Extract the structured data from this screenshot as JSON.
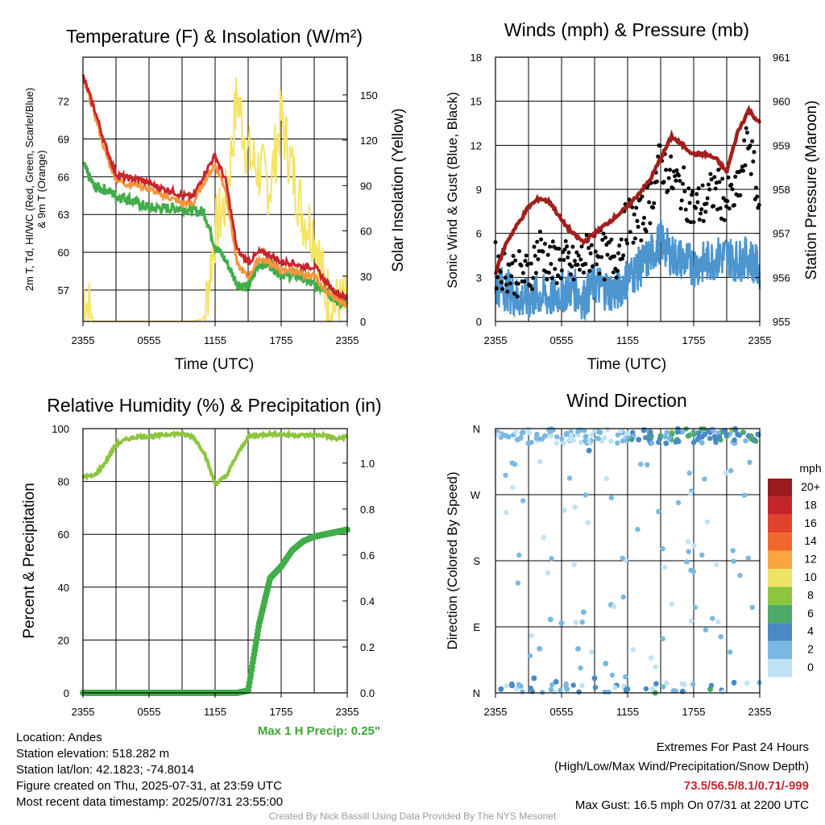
{
  "colors": {
    "temp": "#c8252c",
    "dew_green": "#41ad49",
    "orange": "#f7953b",
    "insolation": "#f6e363",
    "wind": "#4d95cf",
    "gust": "#000000",
    "pressure": "#a21f1c",
    "rh": "#8cc63f",
    "precip": "#41ad49",
    "max_precip_text": "#3aa632",
    "extremes_text": "#c0272d"
  },
  "x_ticks": [
    "2355",
    "0555",
    "1155",
    "1755",
    "2355"
  ],
  "panels": {
    "temp": {
      "title": "Temperature (F) & Insolation (W/m²)",
      "ylabel_left_1": "2m T, Td, HI/WC (Red, Green, Scarlet/Blue)",
      "ylabel_left_2": "& 9m T (Orange)",
      "ylabel_right": "Solar Insolation (Yellow)",
      "xlabel": "Time (UTC)",
      "y_ticks": [
        "57",
        "60",
        "63",
        "66",
        "69",
        "72"
      ],
      "y2_ticks": [
        "0",
        "30",
        "60",
        "90",
        "120",
        "150"
      ]
    },
    "wind": {
      "title": "Winds (mph) & Pressure (mb)",
      "ylabel_left": "Sonic Wind & Gust (Blue, Black)",
      "ylabel_right": "Station Pressure (Maroon)",
      "xlabel": "Time (UTC)",
      "y_ticks": [
        "0",
        "3",
        "6",
        "9",
        "12",
        "15",
        "18"
      ],
      "y2_ticks": [
        "955",
        "956",
        "957",
        "958",
        "959",
        "960",
        "961"
      ]
    },
    "rh": {
      "title": "Relative Humidity (%) & Precipitation (in)",
      "ylabel_left": "Percent & Precipitation",
      "y_ticks": [
        "0",
        "20",
        "40",
        "60",
        "80",
        "100"
      ],
      "y2_ticks": [
        "0.0",
        "0.2",
        "0.4",
        "0.6",
        "0.8",
        "1.0"
      ],
      "max_precip": "Max 1 H Precip: 0.25\""
    },
    "dir": {
      "title": "Wind Direction",
      "ylabel_left": "Direction (Colored By Speed)",
      "y_ticks": [
        "N",
        "E",
        "S",
        "W",
        "N"
      ],
      "legend_title": "mph",
      "legend_labels": [
        "20+",
        "18",
        "16",
        "14",
        "12",
        "10",
        "8",
        "6",
        "4",
        "2",
        "0"
      ],
      "legend_colors": [
        "#9b1c1f",
        "#c4252b",
        "#e0432b",
        "#f0682e",
        "#f9a540",
        "#ede465",
        "#8cc63f",
        "#4daa6a",
        "#4889c6",
        "#7ab8e2",
        "#bfe2f5"
      ]
    }
  },
  "chart_data": [
    {
      "type": "line",
      "title": "Temperature (F) & Insolation (W/m²)",
      "xlabel": "Time (UTC)",
      "ylabel": "2m T, Td, HI/WC (Red, Green, Scarlet/Blue) & 9m T (Orange)",
      "y2label": "Solar Insolation (Yellow)",
      "x_hours": [
        0,
        1,
        2,
        3,
        4,
        5,
        6,
        7,
        8,
        9,
        10,
        11,
        12,
        13,
        14,
        15,
        16,
        17,
        18,
        19,
        20,
        21,
        22,
        23,
        24
      ],
      "ylim": [
        54.5,
        75.5
      ],
      "y2lim": [
        0,
        175
      ],
      "series": [
        {
          "name": "2m T",
          "axis": "left",
          "values": [
            74,
            71.5,
            68.6,
            66.2,
            65.9,
            65.8,
            65.5,
            65.1,
            64.9,
            64.5,
            64.4,
            66.2,
            67.7,
            65.6,
            60.2,
            59.2,
            60,
            59.8,
            59.2,
            59.2,
            58.8,
            58.9,
            57.7,
            56.8,
            56.3
          ]
        },
        {
          "name": "9m T",
          "axis": "left",
          "values": [
            73.8,
            71.2,
            68,
            65.8,
            65.4,
            65.4,
            65,
            64.6,
            64.3,
            63.9,
            63.9,
            65.6,
            67,
            64.9,
            59,
            58,
            59.5,
            59.2,
            58.5,
            58.6,
            58.1,
            58.2,
            57,
            56.2,
            55.9
          ]
        },
        {
          "name": "Td",
          "axis": "left",
          "values": [
            67,
            65.2,
            65,
            64.5,
            64.3,
            63.9,
            63.5,
            63.5,
            63.5,
            63.5,
            63.3,
            63.2,
            60.5,
            59.3,
            57.5,
            57.2,
            59.1,
            59,
            58.3,
            58.2,
            58,
            57.3,
            57.2,
            56.1,
            55.9
          ]
        },
        {
          "name": "Solar Insolation",
          "axis": "right",
          "values": [
            20,
            0,
            0,
            0,
            0,
            0,
            0,
            0,
            0,
            0,
            0,
            2,
            60,
            80,
            150,
            110,
            100,
            90,
            135,
            100,
            70,
            60,
            20,
            10,
            10
          ]
        }
      ]
    },
    {
      "type": "line",
      "title": "Winds (mph) & Pressure (mb)",
      "xlabel": "Time (UTC)",
      "ylabel": "Sonic Wind & Gust (Blue, Black)",
      "y2label": "Station Pressure (Maroon)",
      "ylim": [
        0,
        18
      ],
      "y2lim": [
        955,
        961
      ],
      "x_hours": [
        0,
        1,
        2,
        3,
        4,
        5,
        6,
        7,
        8,
        9,
        10,
        11,
        12,
        13,
        14,
        15,
        16,
        17,
        18,
        19,
        20,
        21,
        22,
        23,
        24
      ],
      "series": [
        {
          "name": "Station Pressure",
          "axis": "right",
          "values": [
            956.1,
            956.8,
            957.2,
            957.6,
            957.8,
            957.7,
            957.3,
            957.0,
            956.8,
            957.0,
            957.2,
            957.4,
            957.6,
            957.9,
            958.2,
            958.7,
            959.2,
            959.0,
            958.8,
            958.8,
            958.7,
            958.4,
            959.3,
            959.8,
            959.5
          ]
        },
        {
          "name": "Sonic Wind",
          "axis": "left",
          "values": [
            2.5,
            2.2,
            1.6,
            1.5,
            1.8,
            1.6,
            2.0,
            2.3,
            1.5,
            2.6,
            2.2,
            2.0,
            3.0,
            3.6,
            4.4,
            5.5,
            4.5,
            4.2,
            3.8,
            4.0,
            4.3,
            4.5,
            4.1,
            4.4,
            3.5
          ]
        },
        {
          "name": "Gust",
          "axis": "left",
          "values": [
            3.2,
            3.0,
            2.6,
            2.5,
            4.5,
            3.2,
            3.5,
            3.0,
            3.5,
            4.6,
            3.6,
            3.8,
            6.3,
            6.0,
            7.5,
            10.3,
            9.0,
            8.4,
            7.0,
            7.4,
            8.4,
            7.5,
            8.0,
            12.0,
            6.5
          ]
        }
      ]
    },
    {
      "type": "line",
      "title": "Relative Humidity (%) & Precipitation (in)",
      "ylabel": "Percent & Precipitation",
      "ylim": [
        0,
        100
      ],
      "y2lim": [
        0,
        1.15
      ],
      "x_hours": [
        0,
        1,
        2,
        3,
        4,
        5,
        6,
        7,
        8,
        9,
        10,
        11,
        12,
        13,
        14,
        15,
        16,
        17,
        18,
        19,
        20,
        21,
        22,
        23,
        24
      ],
      "series": [
        {
          "name": "Relative Humidity",
          "axis": "left",
          "values": [
            82,
            82,
            87,
            94,
            96,
            97,
            97,
            97.5,
            98,
            98,
            97,
            91,
            79,
            82,
            90,
            97,
            97.5,
            98,
            97.8,
            97.5,
            97.5,
            97.5,
            97.5,
            96,
            97
          ]
        },
        {
          "name": "Precipitation",
          "axis": "right",
          "values": [
            0,
            0,
            0,
            0,
            0,
            0,
            0,
            0,
            0,
            0,
            0,
            0,
            0,
            0,
            0,
            0.01,
            0.3,
            0.5,
            0.55,
            0.62,
            0.66,
            0.68,
            0.69,
            0.7,
            0.71
          ]
        }
      ]
    },
    {
      "type": "scatter",
      "title": "Wind Direction",
      "ylabel": "Direction (Colored By Speed)",
      "yticks": [
        "N",
        "E",
        "S",
        "W",
        "N"
      ],
      "ylim": [
        0,
        360
      ],
      "series": [
        {
          "name": "Direction",
          "x_hours": [
            0.2,
            0.5,
            1,
            1.5,
            2,
            2.5,
            3,
            3.5,
            4,
            4.5,
            5,
            5.5,
            6,
            6.5,
            7,
            7.5,
            8,
            8.5,
            9,
            9.5,
            10,
            10.5,
            11,
            11.5,
            12,
            12.5,
            13,
            13.5,
            14,
            14.5,
            15,
            15.5,
            16,
            16.5,
            17,
            17.5,
            18,
            18.5,
            19,
            19.5,
            20,
            20.5,
            21,
            21.5,
            22,
            22.5,
            23,
            23.5
          ],
          "values": [
            355,
            5,
            350,
            10,
            345,
            355,
            340,
            20,
            60,
            350,
            100,
            15,
            95,
            5,
            350,
            60,
            110,
            330,
            20,
            355,
            40,
            120,
            10,
            355,
            5,
            350,
            345,
            358,
            355,
            0,
            350,
            340,
            355,
            345,
            2,
            350,
            355,
            348,
            352,
            5,
            345,
            355,
            350,
            358,
            352,
            355,
            350,
            345
          ],
          "speeds": [
            2,
            4,
            1,
            3,
            2,
            2,
            1,
            3,
            1,
            2,
            1,
            3,
            1,
            2,
            2,
            1,
            1,
            3,
            4,
            2,
            1,
            2,
            4,
            3,
            5,
            4,
            3,
            4,
            6,
            5,
            4,
            3,
            7,
            5,
            4,
            6,
            5,
            4,
            3,
            5,
            4,
            6,
            5,
            7,
            4,
            5,
            4,
            3
          ]
        }
      ]
    }
  ],
  "info": {
    "location": "Location: Andes",
    "elevation": "Station elevation: 518.282 m",
    "latlon": "Station lat/lon: 42.1823; -74.8014",
    "created": "Figure created on Thu, 2025-07-31, at 23:59 UTC",
    "recent": "Most recent data timestamp: 2025/07/31 23:55:00"
  },
  "extremes": {
    "heading": "Extremes For Past 24 Hours",
    "subheading": "(High/Low/Max Wind/Precipitation/Snow Depth)",
    "values": "73.5/56.5/8.1/0.71/-999",
    "max_gust": "Max Gust: 16.5 mph On 07/31 at 2200 UTC"
  },
  "credit": "Created By Nick Bassill Using Data Provided By The NYS Mesonet"
}
